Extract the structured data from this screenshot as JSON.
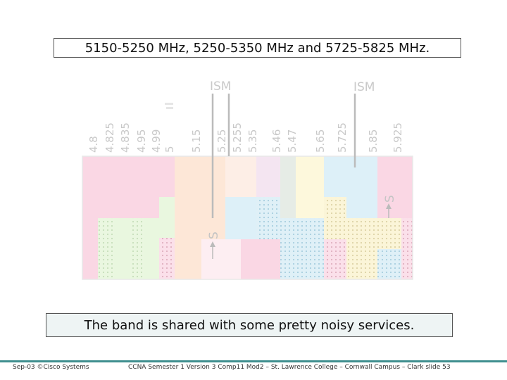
{
  "title": "5150-5250 MHz, 5250-5350 MHz and 5725-5825 MHz.",
  "caption": "The band is shared with some pretty noisy services.",
  "diagram": {
    "tick_labels": [
      "4.8",
      "4.825",
      "4.835",
      "4.95",
      "4.99",
      "5",
      "5.15",
      "5.25",
      "5.255",
      "5.35",
      "5.46",
      "5.47",
      "5.65",
      "5.725",
      "5.85",
      "5.925"
    ],
    "ism_labels": [
      "ISM",
      "ISM"
    ],
    "s_labels": [
      "S",
      "S"
    ],
    "colors": {
      "pink": "#fad7e4",
      "light_green": "#e9f7df",
      "peach": "#fde7d7",
      "light_blue": "#ddf0f8",
      "cream": "#fdf8dc",
      "gray": "#e6ece6",
      "lavender": "#f4e5f1",
      "line": "#bbbbbb"
    }
  },
  "footer": {
    "left": "Sep-03 ©Cisco Systems",
    "right": "CCNA Semester 1 Version 3 Comp11 Mod2 – St. Lawrence College – Cornwall Campus – Clark slide 53"
  }
}
